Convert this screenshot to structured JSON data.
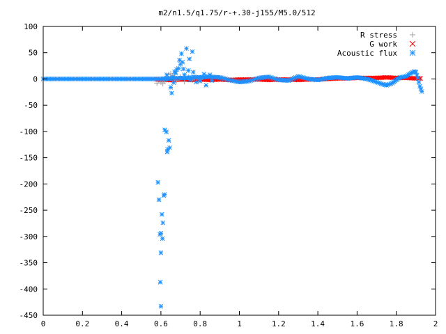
{
  "chart_data": {
    "type": "scatter",
    "title": "m2/n1.5/q1.75/r-+.30-j155/M5.0/512",
    "xlabel": "",
    "ylabel": "",
    "xlim": [
      0,
      2
    ],
    "ylim": [
      -450,
      100
    ],
    "x_ticks": [
      0,
      0.2,
      0.4,
      0.6,
      0.8,
      1,
      1.2,
      1.4,
      1.6,
      1.8,
      2
    ],
    "x_tick_labels": [
      "0",
      "0.2",
      "0.4",
      "0.6",
      "0.8",
      "1",
      "1.2",
      "1.4",
      "1.6",
      "1.8",
      "2"
    ],
    "y_ticks": [
      100,
      50,
      0,
      -50,
      -100,
      -150,
      -200,
      -250,
      -300,
      -350,
      -400,
      -450
    ],
    "y_tick_labels": [
      "100",
      "50",
      "0",
      "-50",
      "-100",
      "-150",
      "-200",
      "-250",
      "-300",
      "-350",
      "-400",
      "-450"
    ],
    "grid": false,
    "legend_position": "top-right",
    "series": [
      {
        "name": "R stress",
        "marker": "plus",
        "color": "#a0a0a4",
        "points": [
          [
            0.58,
            -8
          ],
          [
            0.6,
            -6
          ],
          [
            0.61,
            -9
          ],
          [
            0.62,
            -4
          ],
          [
            0.63,
            5
          ],
          [
            0.64,
            8
          ],
          [
            0.65,
            10
          ],
          [
            0.66,
            6
          ],
          [
            0.67,
            2
          ],
          [
            0.68,
            -3
          ],
          [
            0.7,
            4
          ],
          [
            0.72,
            -5
          ],
          [
            0.74,
            3
          ],
          [
            0.76,
            -2
          ],
          [
            0.78,
            1
          ],
          [
            0.8,
            -1
          ]
        ]
      },
      {
        "name": "G work",
        "marker": "cross",
        "color": "#ff0000",
        "points": [
          [
            0.58,
            -1
          ],
          [
            0.62,
            -2
          ],
          [
            0.66,
            -2
          ],
          [
            0.7,
            -1
          ],
          [
            0.75,
            -2
          ],
          [
            0.8,
            -1
          ],
          [
            0.85,
            -2
          ],
          [
            0.9,
            -1
          ],
          [
            0.95,
            -2
          ],
          [
            1.0,
            -1
          ],
          [
            1.05,
            -1
          ],
          [
            1.1,
            -1
          ],
          [
            1.15,
            -2
          ],
          [
            1.2,
            -1
          ],
          [
            1.25,
            -1
          ],
          [
            1.3,
            -2
          ],
          [
            1.35,
            -1
          ],
          [
            1.4,
            -1
          ],
          [
            1.45,
            0
          ],
          [
            1.5,
            1
          ],
          [
            1.55,
            1
          ],
          [
            1.6,
            2
          ],
          [
            1.65,
            2
          ],
          [
            1.7,
            2
          ],
          [
            1.75,
            3
          ],
          [
            1.8,
            2
          ],
          [
            1.85,
            2
          ],
          [
            1.9,
            1
          ],
          [
            1.93,
            1
          ]
        ]
      },
      {
        "name": "Acoustic flux",
        "marker": "star",
        "color": "#1e90ff",
        "points": [
          [
            0.585,
            -197
          ],
          [
            0.59,
            -230
          ],
          [
            0.595,
            -296
          ],
          [
            0.6,
            -294
          ],
          [
            0.6,
            -331
          ],
          [
            0.597,
            -387
          ],
          [
            0.6,
            -433
          ],
          [
            0.605,
            -258
          ],
          [
            0.61,
            -274
          ],
          [
            0.608,
            -304
          ],
          [
            0.615,
            -222
          ],
          [
            0.618,
            -220
          ],
          [
            0.62,
            -97
          ],
          [
            0.628,
            -101
          ],
          [
            0.632,
            -139
          ],
          [
            0.634,
            -134
          ],
          [
            0.64,
            -117
          ],
          [
            0.645,
            -131
          ],
          [
            0.63,
            8
          ],
          [
            0.65,
            -16
          ],
          [
            0.655,
            -27
          ],
          [
            0.66,
            4
          ],
          [
            0.665,
            -7
          ],
          [
            0.67,
            14
          ],
          [
            0.675,
            11
          ],
          [
            0.68,
            18
          ],
          [
            0.69,
            20
          ],
          [
            0.695,
            36
          ],
          [
            0.7,
            28
          ],
          [
            0.705,
            48
          ],
          [
            0.71,
            32
          ],
          [
            0.715,
            19
          ],
          [
            0.72,
            8
          ],
          [
            0.73,
            58
          ],
          [
            0.74,
            16
          ],
          [
            0.745,
            38
          ],
          [
            0.75,
            -2
          ],
          [
            0.76,
            52
          ],
          [
            0.765,
            13
          ],
          [
            0.77,
            4
          ],
          [
            0.78,
            -6
          ],
          [
            0.8,
            -4
          ],
          [
            0.81,
            3
          ],
          [
            0.82,
            9
          ],
          [
            0.83,
            -12
          ],
          [
            0.84,
            5
          ],
          [
            0.85,
            8
          ],
          [
            0.86,
            -3
          ]
        ]
      }
    ],
    "flux_curve": {
      "comment_free": true,
      "x": [
        0,
        0.1,
        0.2,
        0.3,
        0.4,
        0.5,
        0.58,
        0.85,
        0.9,
        0.95,
        1.0,
        1.05,
        1.1,
        1.15,
        1.2,
        1.25,
        1.3,
        1.35,
        1.4,
        1.45,
        1.5,
        1.55,
        1.6,
        1.65,
        1.7,
        1.73,
        1.75,
        1.78,
        1.8,
        1.82,
        1.85,
        1.87,
        1.89,
        1.9,
        1.91,
        1.92,
        1.93
      ],
      "y": [
        0,
        0,
        0,
        0,
        0,
        0,
        0,
        4,
        3,
        -2,
        -6,
        -4,
        2,
        4,
        -2,
        -3,
        5,
        0,
        -2,
        2,
        3,
        1,
        3,
        0,
        -6,
        -10,
        -12,
        -8,
        -2,
        3,
        5,
        10,
        14,
        13,
        2,
        -14,
        -24
      ]
    }
  }
}
